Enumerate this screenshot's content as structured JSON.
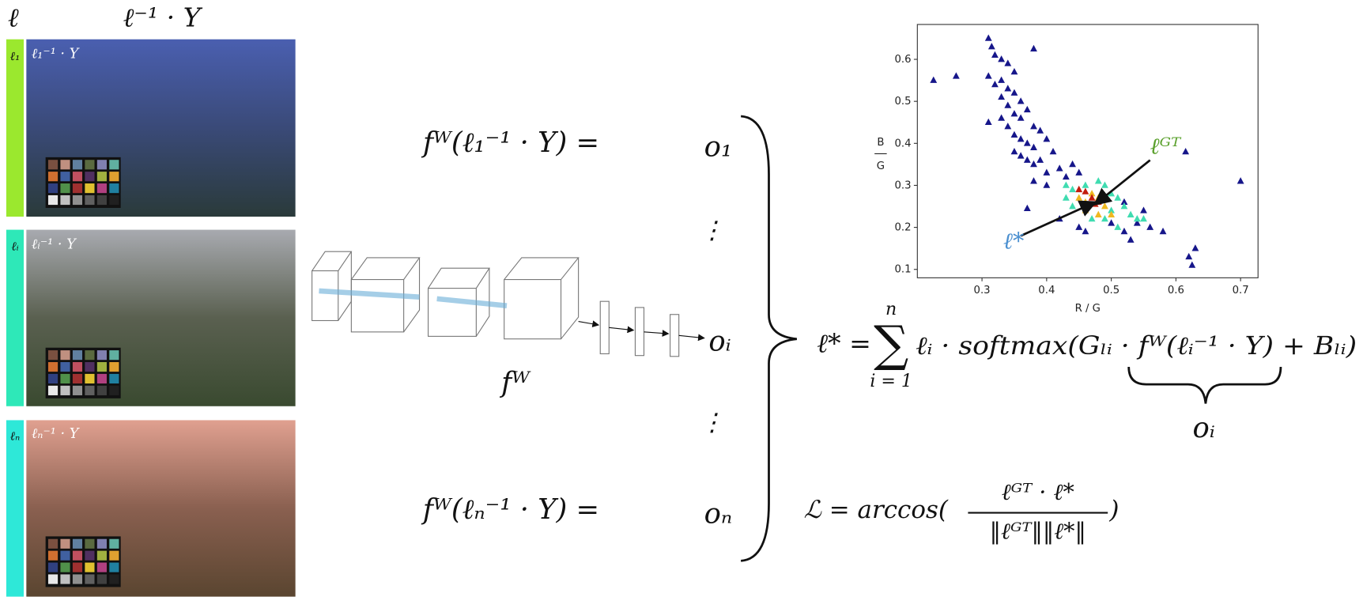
{
  "header": {
    "illuminant": "ℓ",
    "corrected": "ℓ⁻¹ · Y"
  },
  "panels": [
    {
      "illuminant": "ℓ₁",
      "image_label": "ℓ₁⁻¹ · Y"
    },
    {
      "illuminant": "ℓᵢ",
      "image_label": "ℓᵢ⁻¹ · Y"
    },
    {
      "illuminant": "ℓₙ",
      "image_label": "ℓₙ⁻¹ · Y"
    }
  ],
  "network": {
    "label": "fᵂ",
    "ellipsis": "⋮",
    "outputs": [
      {
        "input": "fᵂ(ℓ₁⁻¹ · Y) =",
        "output": "o₁"
      },
      {
        "output": "oᵢ"
      },
      {
        "input": "fᵂ(ℓₙ⁻¹ · Y) =",
        "output": "oₙ"
      }
    ]
  },
  "equations": {
    "estimate": {
      "lhs": "ℓ* =",
      "sum": "∑",
      "upper": "n",
      "lower": "i = 1",
      "body": "ℓᵢ · softmax(Gₗᵢ · fᵂ(ℓᵢ⁻¹ · Y) + Bₗᵢ)",
      "underbrace": "oᵢ"
    },
    "loss": {
      "lhs": "ℒ =  arccos(",
      "numerator": "ℓᴳᵀ · ℓ*",
      "denominator": "‖ℓᴳᵀ‖‖ℓ*‖",
      "close": ")"
    }
  },
  "chart_data": {
    "type": "scatter",
    "xlabel": "R / G",
    "ylabel": {
      "numerator": "B",
      "denominator": "G"
    },
    "xlim": [
      0.2,
      0.727
    ],
    "ylim": [
      0.08,
      0.683
    ],
    "xticks": [
      0.3,
      0.4,
      0.5,
      0.6,
      0.7
    ],
    "yticks": [
      0.1,
      0.2,
      0.3,
      0.4,
      0.5,
      0.6
    ],
    "series": [
      {
        "color": "#16168a",
        "x": [
          0.225,
          0.26,
          0.31,
          0.315,
          0.32,
          0.33,
          0.34,
          0.35,
          0.38,
          0.31,
          0.32,
          0.33,
          0.34,
          0.35,
          0.36,
          0.33,
          0.34,
          0.35,
          0.36,
          0.37,
          0.38,
          0.39,
          0.31,
          0.33,
          0.34,
          0.35,
          0.36,
          0.37,
          0.38,
          0.4,
          0.35,
          0.36,
          0.37,
          0.38,
          0.39,
          0.41,
          0.42,
          0.4,
          0.43,
          0.44,
          0.45,
          0.38,
          0.4,
          0.37,
          0.42,
          0.45,
          0.46,
          0.5,
          0.52,
          0.54,
          0.56,
          0.58,
          0.53,
          0.615,
          0.7,
          0.62,
          0.63,
          0.625,
          0.55,
          0.52
        ],
        "values": [
          0.55,
          0.56,
          0.65,
          0.63,
          0.61,
          0.6,
          0.59,
          0.57,
          0.625,
          0.56,
          0.54,
          0.55,
          0.53,
          0.52,
          0.5,
          0.51,
          0.49,
          0.47,
          0.46,
          0.48,
          0.44,
          0.43,
          0.45,
          0.46,
          0.44,
          0.42,
          0.41,
          0.4,
          0.39,
          0.41,
          0.38,
          0.37,
          0.36,
          0.35,
          0.36,
          0.38,
          0.34,
          0.33,
          0.32,
          0.35,
          0.33,
          0.31,
          0.3,
          0.245,
          0.22,
          0.2,
          0.19,
          0.21,
          0.19,
          0.21,
          0.2,
          0.19,
          0.17,
          0.38,
          0.31,
          0.13,
          0.15,
          0.11,
          0.24,
          0.26
        ]
      },
      {
        "color": "#3fdcb0",
        "x": [
          0.43,
          0.44,
          0.46,
          0.48,
          0.49,
          0.5,
          0.51,
          0.52,
          0.53,
          0.54,
          0.49,
          0.47,
          0.5,
          0.51,
          0.44,
          0.43,
          0.55
        ],
        "values": [
          0.3,
          0.29,
          0.3,
          0.31,
          0.3,
          0.28,
          0.27,
          0.25,
          0.23,
          0.22,
          0.22,
          0.22,
          0.24,
          0.2,
          0.25,
          0.27,
          0.22
        ]
      },
      {
        "color": "#f0b820",
        "x": [
          0.45,
          0.46,
          0.47,
          0.48,
          0.49,
          0.48,
          0.46,
          0.5
        ],
        "values": [
          0.27,
          0.26,
          0.28,
          0.27,
          0.25,
          0.23,
          0.24,
          0.23
        ]
      },
      {
        "color": "#c21d0c",
        "x": [
          0.45,
          0.46,
          0.47,
          0.48,
          0.475
        ],
        "values": [
          0.29,
          0.285,
          0.27,
          0.26,
          0.255
        ]
      }
    ],
    "annotations": [
      {
        "text": "ℓᴳᵀ",
        "color": "#5aa02c",
        "x": 0.56,
        "y": 0.36,
        "target_x": 0.475,
        "target_y": 0.255
      },
      {
        "text": "ℓ*",
        "color": "#4a8fd0",
        "x": 0.36,
        "y": 0.18,
        "target_x": 0.475,
        "target_y": 0.26
      }
    ]
  }
}
